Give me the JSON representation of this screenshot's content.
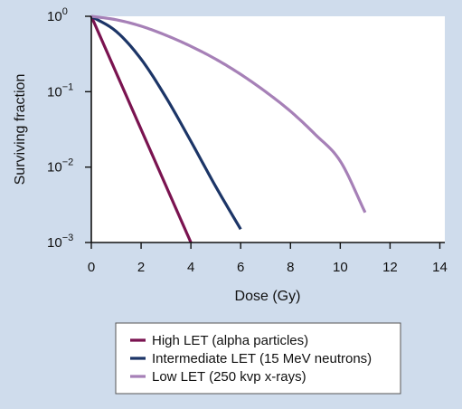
{
  "chart_data": {
    "type": "line",
    "xlabel": "Dose (Gy)",
    "ylabel": "Surviving fraction",
    "x_ticks": [
      0,
      2,
      4,
      6,
      8,
      10,
      12,
      14
    ],
    "y_scale": "log",
    "y_ticks": [
      {
        "base": "10",
        "exp": "0"
      },
      {
        "base": "10",
        "exp": "−1"
      },
      {
        "base": "10",
        "exp": "−2"
      },
      {
        "base": "10",
        "exp": "−3"
      }
    ],
    "xlim": [
      0,
      14.2
    ],
    "ylim": [
      0.001,
      1
    ],
    "grid": false,
    "legend_position": "bottom",
    "series": [
      {
        "name": "High LET (alpha particles)",
        "color": "#7a1350",
        "x": [
          0,
          1,
          2,
          3,
          4
        ],
        "y": [
          1,
          0.178,
          0.0316,
          0.00562,
          0.001
        ]
      },
      {
        "name": "Intermediate LET (15 MeV neutrons)",
        "color": "#1c3567",
        "x": [
          0,
          1,
          2,
          3,
          4,
          5,
          6
        ],
        "y": [
          1,
          0.63,
          0.27,
          0.084,
          0.022,
          0.0055,
          0.0015
        ]
      },
      {
        "name": "Low LET (250 kvp x-rays)",
        "color": "#a680b7",
        "x": [
          0,
          1,
          2,
          3,
          4,
          5,
          6,
          7,
          8,
          9,
          10,
          11
        ],
        "y": [
          1,
          0.9,
          0.74,
          0.56,
          0.4,
          0.27,
          0.17,
          0.1,
          0.055,
          0.027,
          0.012,
          0.0025
        ]
      }
    ]
  }
}
